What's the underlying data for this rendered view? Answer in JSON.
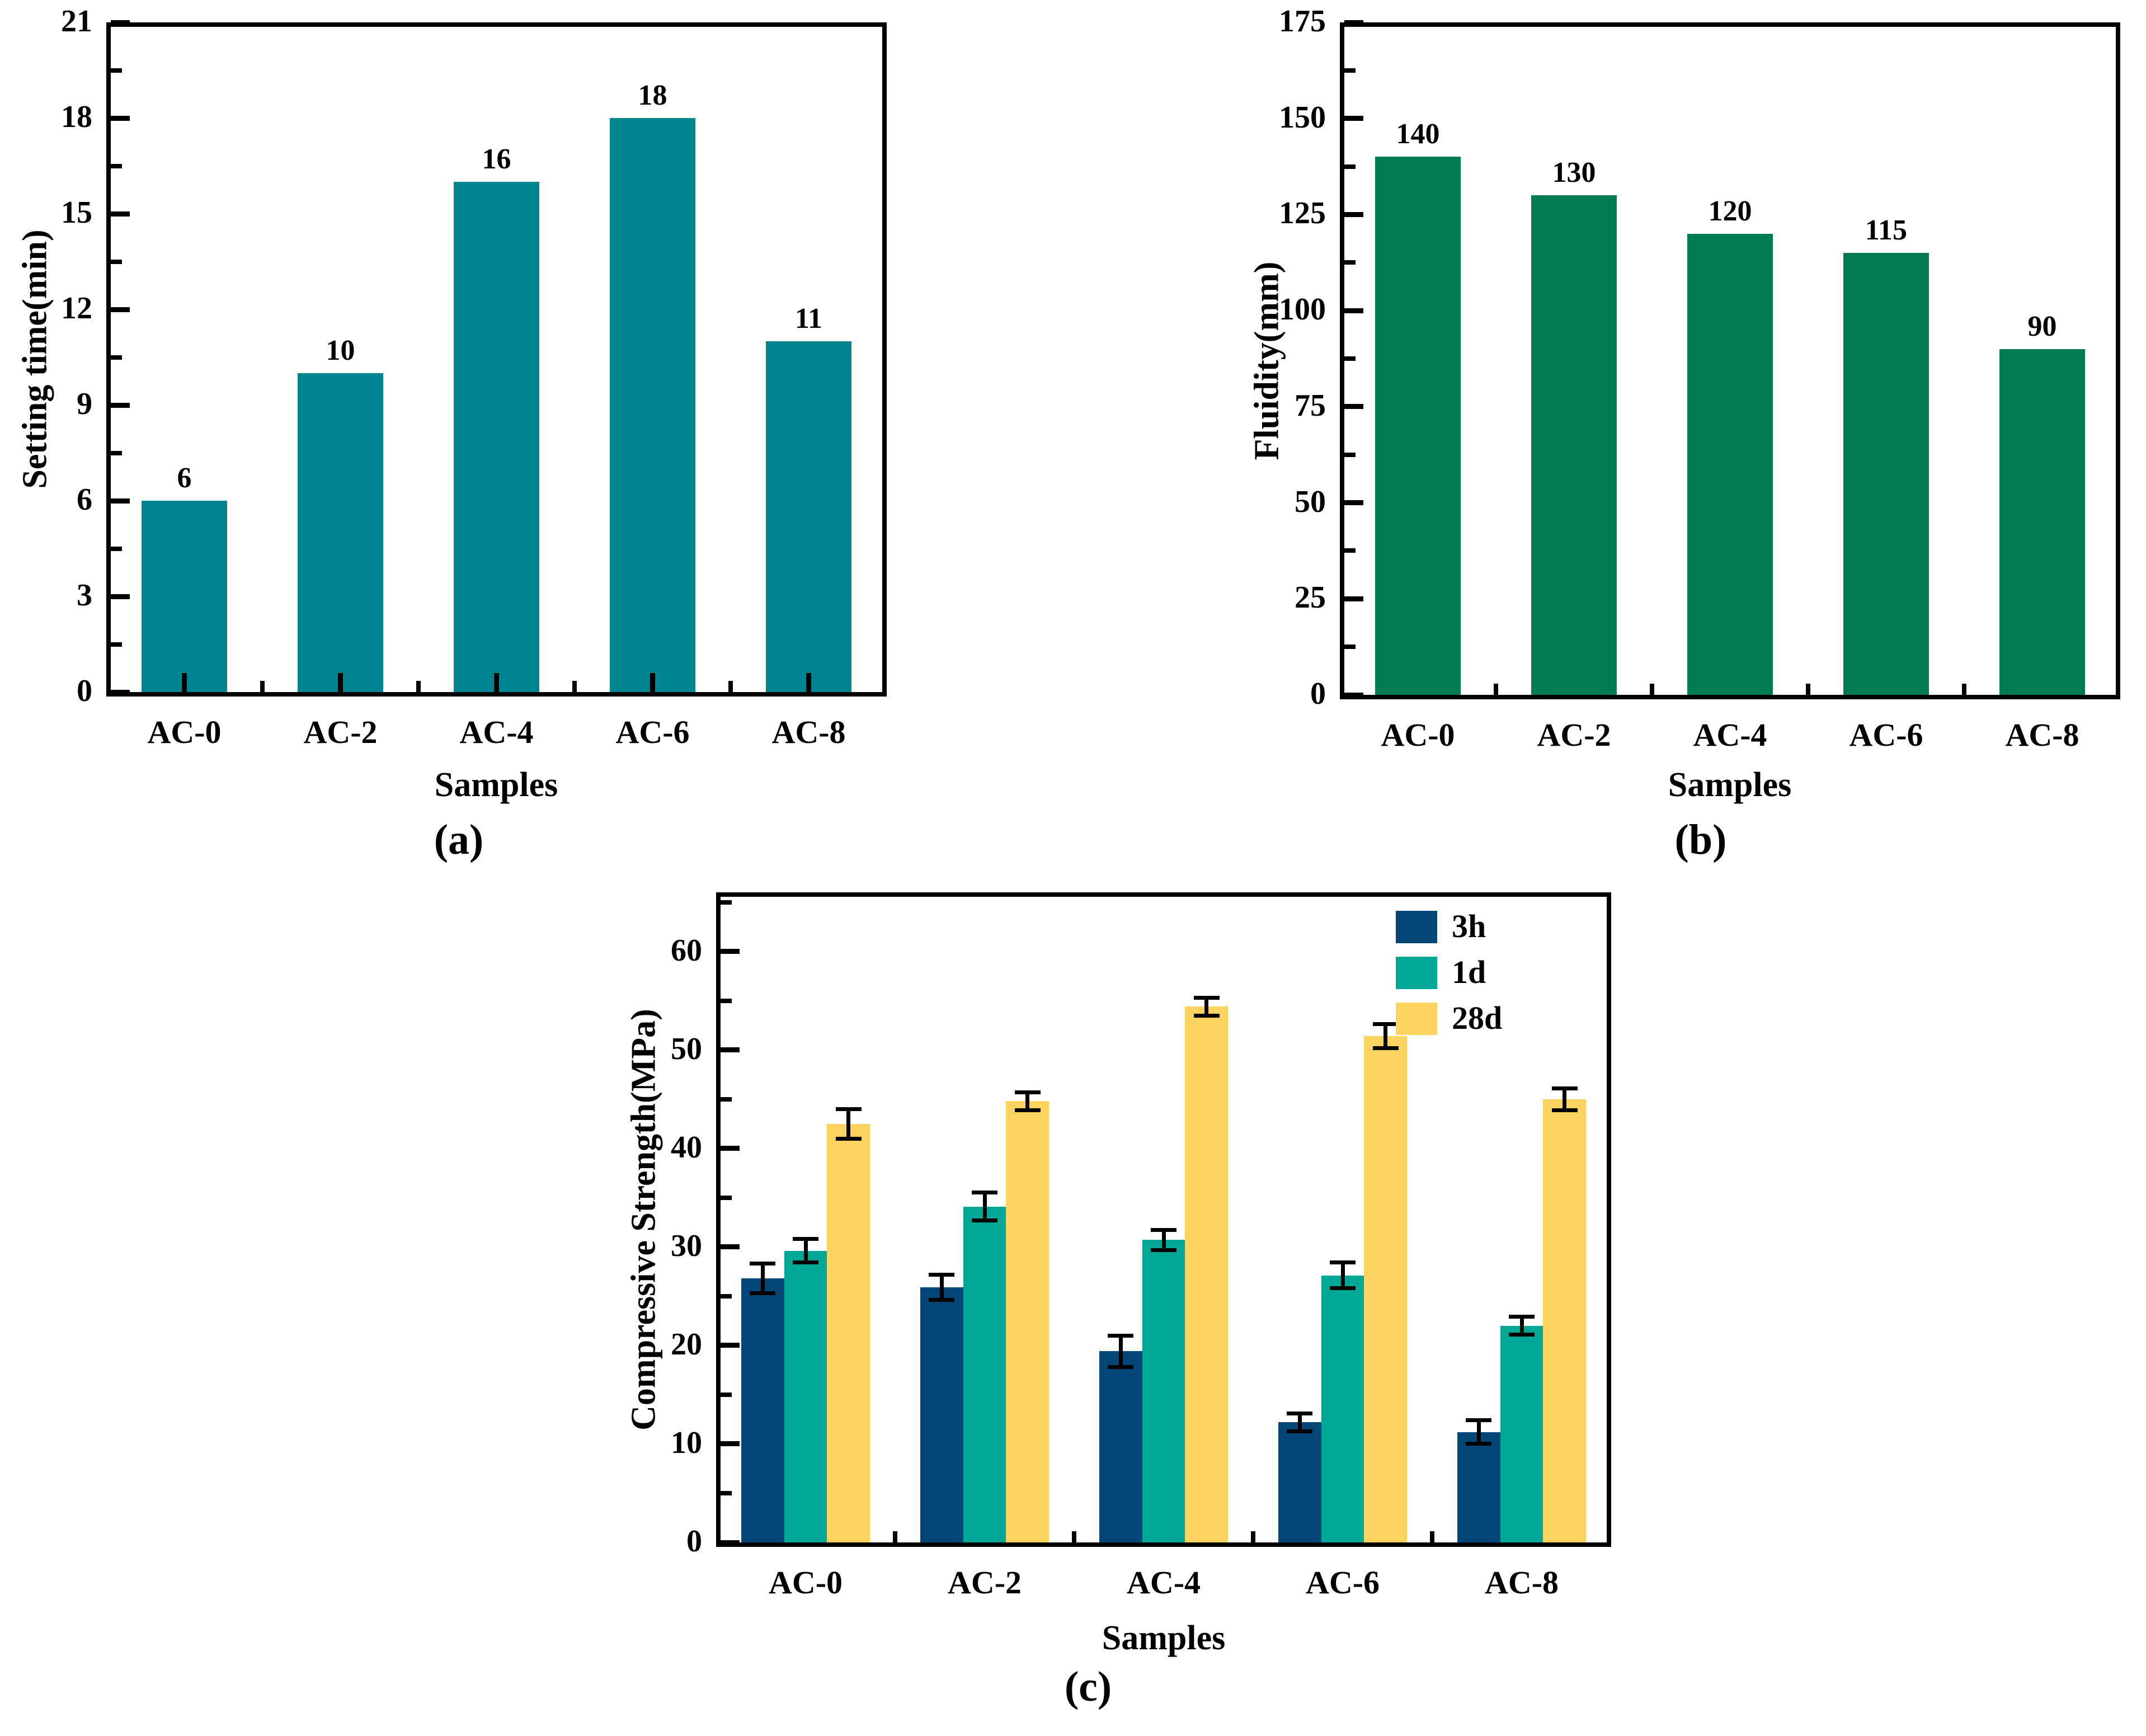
{
  "figure": {
    "description": "Three-panel bar chart figure",
    "captions": [
      "(a)",
      "(b)",
      "(c)"
    ]
  },
  "chart_data": [
    {
      "id": "a",
      "type": "bar",
      "title": "",
      "caption": "(a)",
      "categories": [
        "AC-0",
        "AC-2",
        "AC-4",
        "AC-6",
        "AC-8"
      ],
      "values": [
        6,
        10,
        16,
        18,
        11
      ],
      "value_labels": [
        "6",
        "10",
        "16",
        "18",
        "11"
      ],
      "bar_color": "#008490",
      "xlabel": "Samples",
      "ylabel": "Setting time(min)",
      "ylim": [
        0,
        21
      ],
      "ytick_labels": [
        "0",
        "3",
        "6",
        "9",
        "12",
        "15",
        "18",
        "21"
      ],
      "grid": false,
      "legend_position": "none"
    },
    {
      "id": "b",
      "type": "bar",
      "title": "",
      "caption": "(b)",
      "categories": [
        "AC-0",
        "AC-2",
        "AC-4",
        "AC-6",
        "AC-8"
      ],
      "values": [
        140,
        130,
        120,
        115,
        90
      ],
      "value_labels": [
        "140",
        "130",
        "120",
        "115",
        "90"
      ],
      "bar_color": "#007C50",
      "xlabel": "Samples",
      "ylabel": "Fluidity(mm)",
      "ylim": [
        0,
        175
      ],
      "ytick_labels": [
        "0",
        "25",
        "50",
        "75",
        "100",
        "125",
        "150",
        "175"
      ],
      "grid": false,
      "legend_position": "none"
    },
    {
      "id": "c",
      "type": "bar",
      "title": "",
      "caption": "(c)",
      "categories": [
        "AC-0",
        "AC-2",
        "AC-4",
        "AC-6",
        "AC-8"
      ],
      "series": [
        {
          "name": "3h",
          "color": "#004677",
          "values": [
            26.8,
            25.9,
            19.4,
            12.2,
            11.2
          ],
          "errors": [
            1.5,
            1.3,
            1.6,
            0.9,
            1.2
          ]
        },
        {
          "name": "1d",
          "color": "#00A795",
          "values": [
            29.6,
            34.1,
            30.7,
            27.1,
            22.0
          ],
          "errors": [
            1.2,
            1.4,
            1.0,
            1.3,
            0.9
          ]
        },
        {
          "name": "28d",
          "color": "#FDD35F",
          "values": [
            42.5,
            44.8,
            54.4,
            51.4,
            45.0
          ],
          "errors": [
            1.5,
            0.9,
            0.9,
            1.2,
            1.1
          ]
        }
      ],
      "xlabel": "Samples",
      "ylabel": "Compressive Strength(MPa)",
      "ylim": [
        0,
        66
      ],
      "ytick_labels": [
        "0",
        "10",
        "20",
        "30",
        "40",
        "50",
        "60"
      ],
      "grid": false,
      "legend_position": "upper-right"
    }
  ]
}
